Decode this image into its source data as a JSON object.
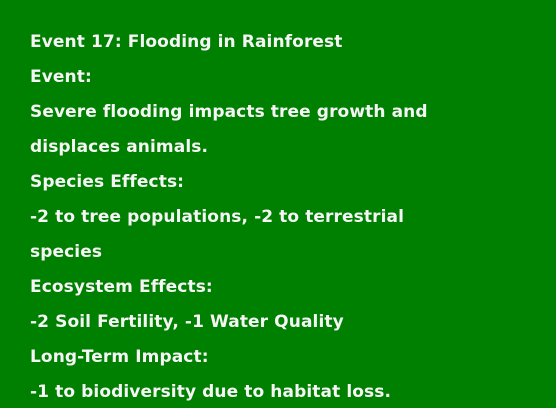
{
  "card": {
    "title": "Event 17: Flooding in Rainforest",
    "event_heading": "Event:",
    "event_text_line1": "Severe flooding impacts tree growth and",
    "event_text_line2": "displaces animals.",
    "species_heading": "Species Effects:",
    "species_text_line1": "-2 to tree populations, -2 to terrestrial",
    "species_text_line2": "species",
    "ecosystem_heading": "Ecosystem Effects:",
    "ecosystem_text": "-2 Soil Fertility, -1 Water Quality",
    "longterm_heading": "Long-Term Impact:",
    "longterm_text": "-1 to biodiversity due to habitat loss."
  },
  "colors": {
    "background": "#008000",
    "text": "#f5f5f5"
  }
}
